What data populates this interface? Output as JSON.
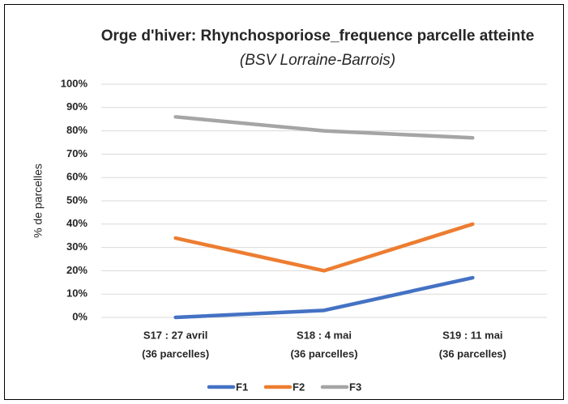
{
  "chart_data": {
    "type": "line",
    "title": "Orge d'hiver: Rhynchosporiose_frequence parcelle atteinte",
    "subtitle": "(BSV Lorraine-Barrois)",
    "y_label": "% de parcelles",
    "categories": [
      [
        "S17 : 27 avril",
        "(36 parcelles)"
      ],
      [
        "S18 : 4 mai",
        "(36 parcelles)"
      ],
      [
        "S19 : 11 mai",
        "(36 parcelles)"
      ]
    ],
    "series": [
      {
        "name": "F1",
        "color": "#4472c4",
        "values": [
          0,
          3,
          17
        ]
      },
      {
        "name": "F2",
        "color": "#ed7d31",
        "values": [
          34,
          20,
          40
        ]
      },
      {
        "name": "F3",
        "color": "#a5a5a5",
        "values": [
          86,
          80,
          77
        ]
      }
    ],
    "ylim": [
      0,
      100
    ],
    "yticks": [
      {
        "value": 0,
        "label": "0%"
      },
      {
        "value": 10,
        "label": "10%"
      },
      {
        "value": 20,
        "label": "20%"
      },
      {
        "value": 30,
        "label": "30%"
      },
      {
        "value": 40,
        "label": "40%"
      },
      {
        "value": 50,
        "label": "50%"
      },
      {
        "value": 60,
        "label": "60%"
      },
      {
        "value": 70,
        "label": "70%"
      },
      {
        "value": 80,
        "label": "80%"
      },
      {
        "value": 90,
        "label": "90%"
      },
      {
        "value": 100,
        "label": "100%"
      }
    ],
    "grid": true,
    "legend": "bottom"
  }
}
